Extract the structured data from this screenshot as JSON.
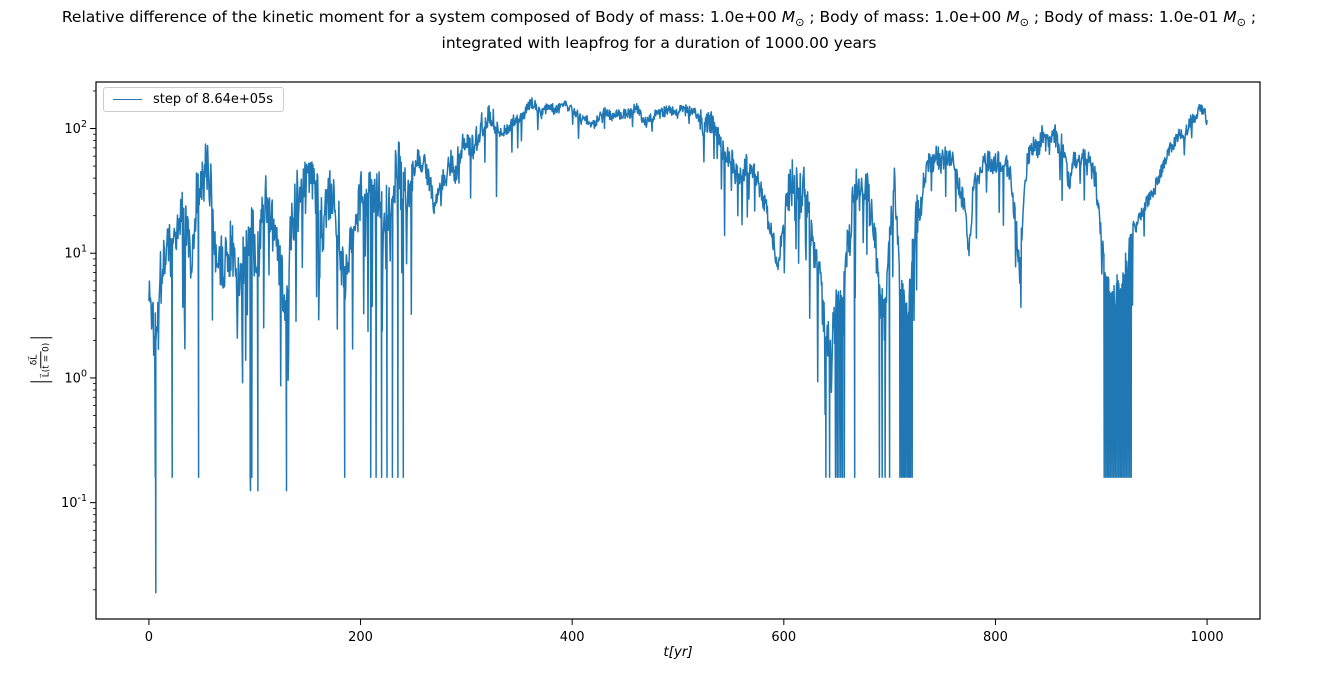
{
  "title": {
    "line1_plain": "Relative difference of the kinetic moment for a system composed of Body of mass: 1.0e+00 M⊙ ; Body of mass: 1.0e+00 M⊙ ; Body of mass: 1.0e-01 M⊙ ;",
    "line1_parts": [
      {
        "text": "Relative difference of the kinetic moment for a system composed of Body of mass: 1.0e+00 "
      },
      {
        "math": "M",
        "sub": "⊙"
      },
      {
        "text": " ; Body of mass: 1.0e+00 "
      },
      {
        "math": "M",
        "sub": "⊙"
      },
      {
        "text": " ; Body of mass: 1.0e-01 "
      },
      {
        "math": "M",
        "sub": "⊙"
      },
      {
        "text": " ;"
      }
    ],
    "line2": "integrated with leapfrog for a duration of 1000.00 years"
  },
  "chart_data": {
    "type": "line",
    "yscale": "log",
    "xlabel": "t[yr]",
    "ylabel_plain": "|δL⃗ / L⃗(t = 0)|",
    "ylabel_numerator": "δL⃗",
    "ylabel_denominator": "L⃗(t = 0)",
    "x_ticks": [
      0,
      200,
      400,
      600,
      800,
      1000
    ],
    "y_tick_exponents": [
      2,
      1,
      0,
      -1
    ],
    "xlim": [
      -50,
      1050
    ],
    "ylim_log10": [
      -1.933,
      2.373
    ],
    "x_range_years": [
      0,
      1000
    ],
    "line_color": "#1f77b4",
    "legend": {
      "position": "upper left",
      "entries": [
        {
          "label": "step of 8.64e+05s",
          "color": "#1f77b4"
        }
      ]
    },
    "floor_value": 0.16,
    "series": [
      {
        "name": "step of 8.64e+05s",
        "trend_t_v": [
          [
            0,
            6
          ],
          [
            5,
            3
          ],
          [
            10,
            9
          ],
          [
            15,
            12
          ],
          [
            20,
            10
          ],
          [
            25,
            15
          ],
          [
            30,
            22
          ],
          [
            35,
            18
          ],
          [
            40,
            12
          ],
          [
            45,
            20
          ],
          [
            50,
            26
          ],
          [
            55,
            33
          ],
          [
            60,
            15
          ],
          [
            65,
            10
          ],
          [
            70,
            13
          ],
          [
            75,
            18
          ],
          [
            80,
            14
          ],
          [
            85,
            10
          ],
          [
            90,
            14
          ],
          [
            95,
            18
          ],
          [
            100,
            12
          ],
          [
            105,
            16
          ],
          [
            110,
            18
          ],
          [
            115,
            14
          ],
          [
            120,
            12
          ],
          [
            125,
            10
          ],
          [
            130,
            8
          ],
          [
            135,
            15
          ],
          [
            140,
            26
          ],
          [
            145,
            38
          ],
          [
            150,
            42
          ],
          [
            155,
            30
          ],
          [
            160,
            18
          ],
          [
            165,
            14
          ],
          [
            170,
            20
          ],
          [
            175,
            15
          ],
          [
            180,
            8
          ],
          [
            185,
            4
          ],
          [
            190,
            12
          ],
          [
            195,
            20
          ],
          [
            200,
            26
          ],
          [
            205,
            16
          ],
          [
            210,
            26
          ],
          [
            215,
            30
          ],
          [
            220,
            20
          ],
          [
            225,
            30
          ],
          [
            230,
            25
          ],
          [
            235,
            34
          ],
          [
            240,
            20
          ],
          [
            245,
            16
          ],
          [
            250,
            25
          ],
          [
            255,
            30
          ],
          [
            260,
            36
          ],
          [
            265,
            30
          ],
          [
            270,
            26
          ],
          [
            275,
            40
          ],
          [
            280,
            52
          ],
          [
            285,
            62
          ],
          [
            290,
            55
          ],
          [
            295,
            70
          ],
          [
            300,
            88
          ],
          [
            310,
            75
          ],
          [
            320,
            95
          ],
          [
            330,
            100
          ],
          [
            340,
            108
          ],
          [
            350,
            125
          ],
          [
            360,
            150
          ],
          [
            365,
            155
          ],
          [
            370,
            138
          ],
          [
            380,
            145
          ],
          [
            390,
            150
          ],
          [
            400,
            143
          ],
          [
            410,
            118
          ],
          [
            420,
            112
          ],
          [
            430,
            122
          ],
          [
            440,
            130
          ],
          [
            450,
            138
          ],
          [
            460,
            155
          ],
          [
            470,
            118
          ],
          [
            480,
            135
          ],
          [
            490,
            150
          ],
          [
            500,
            140
          ],
          [
            510,
            138
          ],
          [
            520,
            118
          ],
          [
            530,
            100
          ],
          [
            540,
            72
          ],
          [
            550,
            65
          ],
          [
            555,
            52
          ],
          [
            560,
            45
          ],
          [
            565,
            62
          ],
          [
            570,
            55
          ],
          [
            575,
            42
          ],
          [
            580,
            30
          ],
          [
            585,
            20
          ],
          [
            590,
            13
          ],
          [
            595,
            10
          ],
          [
            600,
            18
          ],
          [
            605,
            28
          ],
          [
            610,
            45
          ],
          [
            615,
            38
          ],
          [
            620,
            30
          ],
          [
            625,
            20
          ],
          [
            630,
            10
          ],
          [
            635,
            5
          ],
          [
            640,
            3
          ],
          [
            645,
            2
          ],
          [
            650,
            3
          ],
          [
            655,
            5
          ],
          [
            660,
            12
          ],
          [
            665,
            25
          ],
          [
            670,
            35
          ],
          [
            675,
            45
          ],
          [
            680,
            42
          ],
          [
            685,
            30
          ],
          [
            690,
            8
          ],
          [
            695,
            5
          ],
          [
            700,
            25
          ],
          [
            705,
            38
          ],
          [
            710,
            6
          ],
          [
            715,
            3
          ],
          [
            720,
            8
          ],
          [
            725,
            20
          ],
          [
            730,
            35
          ],
          [
            735,
            42
          ],
          [
            740,
            40
          ],
          [
            745,
            50
          ],
          [
            750,
            55
          ],
          [
            755,
            60
          ],
          [
            760,
            50
          ],
          [
            765,
            40
          ],
          [
            770,
            30
          ],
          [
            775,
            12
          ],
          [
            780,
            35
          ],
          [
            785,
            50
          ],
          [
            790,
            58
          ],
          [
            795,
            62
          ],
          [
            800,
            55
          ],
          [
            805,
            45
          ],
          [
            810,
            50
          ],
          [
            815,
            40
          ],
          [
            820,
            15
          ],
          [
            823,
            6
          ],
          [
            826,
            20
          ],
          [
            830,
            50
          ],
          [
            835,
            65
          ],
          [
            840,
            78
          ],
          [
            845,
            88
          ],
          [
            850,
            80
          ],
          [
            855,
            90
          ],
          [
            860,
            75
          ],
          [
            865,
            55
          ],
          [
            870,
            25
          ],
          [
            875,
            45
          ],
          [
            880,
            65
          ],
          [
            885,
            72
          ],
          [
            890,
            55
          ],
          [
            895,
            35
          ],
          [
            900,
            15
          ],
          [
            905,
            7
          ],
          [
            910,
            5
          ],
          [
            915,
            6
          ],
          [
            920,
            5
          ],
          [
            925,
            7
          ],
          [
            930,
            12
          ],
          [
            935,
            18
          ],
          [
            940,
            24
          ],
          [
            945,
            30
          ],
          [
            950,
            35
          ],
          [
            955,
            42
          ],
          [
            960,
            52
          ],
          [
            965,
            62
          ],
          [
            970,
            72
          ],
          [
            975,
            85
          ],
          [
            980,
            95
          ],
          [
            985,
            110
          ],
          [
            990,
            140
          ],
          [
            995,
            150
          ],
          [
            1000,
            115
          ]
        ],
        "noise_bands": [
          [
            0,
            250,
            0.38,
            0.1,
            1.1
          ],
          [
            250,
            330,
            0.18,
            0.05,
            0.5
          ],
          [
            330,
            520,
            0.075,
            0.03,
            0.3
          ],
          [
            520,
            600,
            0.16,
            0.06,
            0.6
          ],
          [
            600,
            730,
            0.3,
            0.1,
            0.9
          ],
          [
            730,
            900,
            0.16,
            0.06,
            0.5
          ],
          [
            900,
            930,
            0.22,
            0.25,
            0.7
          ],
          [
            930,
            1000,
            0.09,
            0.02,
            0.25
          ]
        ],
        "floor_drops": [
          [
            5,
            7,
            1
          ],
          [
            21,
            23,
            1
          ],
          [
            46,
            48,
            1
          ],
          [
            95,
            98,
            2
          ],
          [
            102,
            104,
            1
          ],
          [
            129,
            131,
            1
          ],
          [
            184,
            186,
            1
          ],
          [
            207,
            243,
            7
          ],
          [
            638,
            645,
            2
          ],
          [
            648,
            658,
            6
          ],
          [
            666,
            668,
            1
          ],
          [
            689,
            697,
            3
          ],
          [
            699,
            701,
            1
          ],
          [
            709,
            722,
            9
          ],
          [
            902,
            929,
            18
          ]
        ],
        "deep_spikes": [
          [
            6.5,
            0.019
          ],
          [
            96,
            0.125
          ],
          [
            103,
            0.125
          ],
          [
            130,
            0.125
          ]
        ]
      }
    ]
  }
}
